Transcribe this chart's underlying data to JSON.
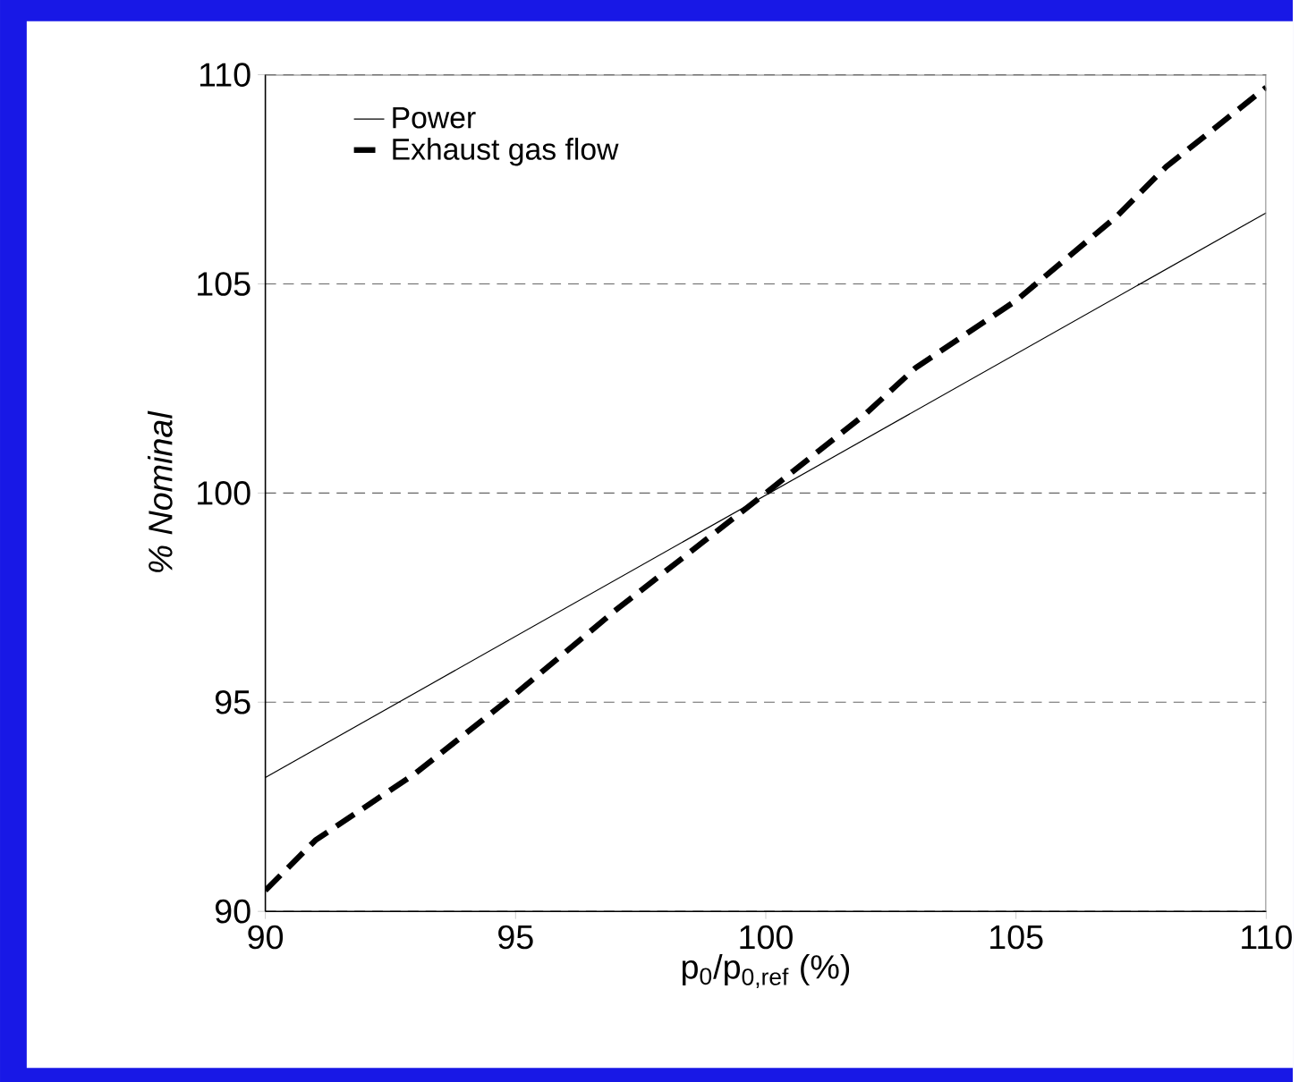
{
  "chart_data": {
    "type": "line",
    "xlabel": "p$_{0}$/p$_{0,ref}$ (%)",
    "ylabel": "% Nominal",
    "xlim": [
      90,
      110
    ],
    "ylim": [
      90,
      110
    ],
    "xticks": [
      90,
      95,
      100,
      105,
      110
    ],
    "yticks": [
      90,
      95,
      100,
      105,
      110
    ],
    "grid": "y",
    "legend": "top left",
    "series": [
      {
        "name": "Power",
        "color": "#000000",
        "line_style": "solid",
        "x": [
          90,
          110
        ],
        "values": [
          93.2,
          106.7
        ]
      },
      {
        "name": "Exhaust gas flow",
        "color": "#000000",
        "line_style": "dashed",
        "x": [
          90,
          91,
          93,
          95,
          97,
          100,
          102,
          103,
          105,
          107,
          108,
          110
        ],
        "values": [
          90.5,
          91.7,
          93.3,
          95.2,
          97.2,
          100,
          101.9,
          103,
          104.6,
          106.6,
          107.8,
          109.7
        ]
      }
    ]
  }
}
